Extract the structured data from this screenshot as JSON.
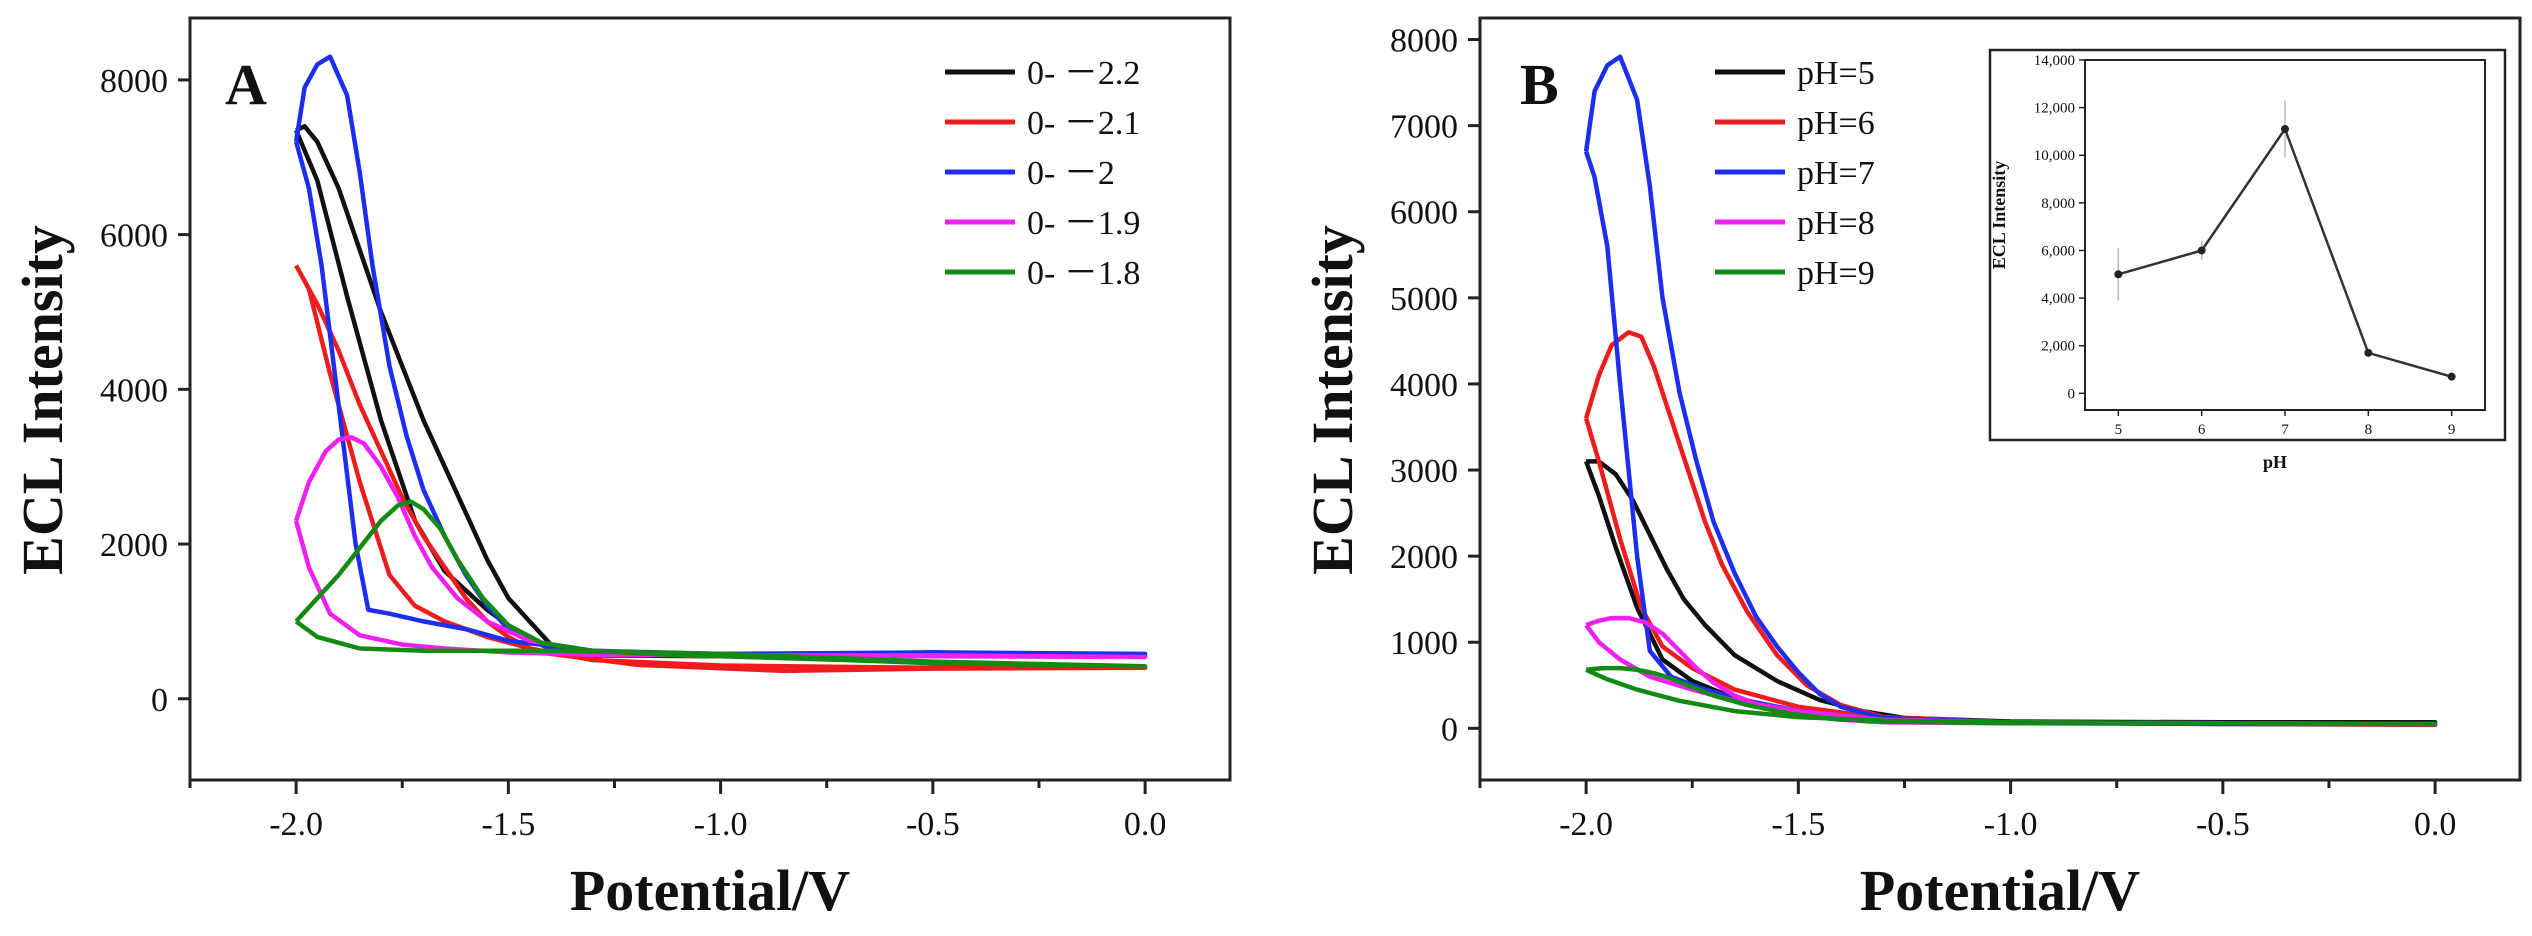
{
  "chart_data": [
    {
      "panel": "A",
      "type": "line",
      "xlabel": "Potential/V",
      "ylabel": "ECL Intensity",
      "xlim": [
        -2.25,
        0.2
      ],
      "ylim": [
        -1050,
        8800
      ],
      "xticks": [
        -2.0,
        -1.5,
        -1.0,
        -0.5,
        0.0
      ],
      "xtick_labels": [
        "-2.0",
        "-1.5",
        "-1.0",
        "-0.5",
        "0.0"
      ],
      "yticks": [
        0,
        2000,
        4000,
        6000,
        8000
      ],
      "ytick_labels": [
        "0",
        "2000",
        "4000",
        "6000",
        "8000"
      ],
      "legend_position": "top-right",
      "series": [
        {
          "name": "0- －2.2",
          "color": "#111111",
          "x": [
            -2.0,
            -1.98,
            -1.95,
            -1.9,
            -1.85,
            -1.8,
            -1.75,
            -1.7,
            -1.65,
            -1.6,
            -1.55,
            -1.5,
            -1.4,
            -1.3,
            -1.0,
            -0.5,
            0.0,
            -0.5,
            -1.0,
            -1.3,
            -1.45,
            -1.55,
            -1.65,
            -1.72,
            -1.8,
            -1.88,
            -1.95,
            -2.0
          ],
          "y": [
            7350,
            7400,
            7200,
            6600,
            5800,
            5000,
            4300,
            3600,
            3000,
            2400,
            1800,
            1300,
            700,
            560,
            550,
            560,
            550,
            560,
            550,
            580,
            750,
            1150,
            1650,
            2300,
            3600,
            5200,
            6700,
            7350
          ]
        },
        {
          "name": "0- －2.1",
          "color": "#ee1c1c",
          "x": [
            -2.0,
            -1.95,
            -1.9,
            -1.85,
            -1.8,
            -1.75,
            -1.7,
            -1.65,
            -1.6,
            -1.55,
            -1.5,
            -1.45,
            -1.3,
            -1.0,
            -0.5,
            0.0,
            -0.5,
            -0.85,
            -1.2,
            -1.4,
            -1.55,
            -1.65,
            -1.72,
            -1.78,
            -1.85,
            -1.92,
            -1.97,
            -2.0
          ],
          "y": [
            5600,
            5100,
            4500,
            3800,
            3200,
            2600,
            2100,
            1700,
            1300,
            1000,
            800,
            650,
            500,
            430,
            400,
            400,
            390,
            360,
            440,
            580,
            800,
            1000,
            1200,
            1600,
            2800,
            4200,
            5300,
            5600
          ]
        },
        {
          "name": "0- －2",
          "color": "#1c2ff0",
          "x": [
            -2.0,
            -1.98,
            -1.95,
            -1.92,
            -1.88,
            -1.85,
            -1.82,
            -1.78,
            -1.74,
            -1.7,
            -1.65,
            -1.6,
            -1.55,
            -1.5,
            -1.45,
            -1.4,
            -1.3,
            -1.0,
            -0.5,
            0.0,
            -0.5,
            -1.0,
            -1.3,
            -1.5,
            -1.6,
            -1.7,
            -1.78,
            -1.83,
            -1.86,
            -1.9,
            -1.94,
            -1.97,
            -2.0
          ],
          "y": [
            7200,
            7900,
            8200,
            8300,
            7800,
            6800,
            5600,
            4300,
            3400,
            2700,
            2100,
            1600,
            1200,
            900,
            750,
            650,
            600,
            580,
            600,
            580,
            600,
            580,
            620,
            750,
            900,
            1000,
            1100,
            1150,
            2000,
            3800,
            5600,
            6600,
            7200
          ]
        },
        {
          "name": "0- －1.9",
          "color": "#f020f0",
          "x": [
            -2.0,
            -1.97,
            -1.93,
            -1.9,
            -1.87,
            -1.84,
            -1.8,
            -1.76,
            -1.72,
            -1.68,
            -1.62,
            -1.55,
            -1.45,
            -1.3,
            -1.0,
            -0.5,
            0.0,
            -0.5,
            -1.0,
            -1.3,
            -1.5,
            -1.65,
            -1.75,
            -1.85,
            -1.92,
            -1.97,
            -2.0
          ],
          "y": [
            2300,
            2800,
            3200,
            3350,
            3380,
            3300,
            3000,
            2600,
            2100,
            1700,
            1300,
            1000,
            750,
            620,
            560,
            560,
            540,
            550,
            560,
            570,
            600,
            650,
            700,
            820,
            1100,
            1700,
            2300
          ]
        },
        {
          "name": "0- －1.8",
          "color": "#138a13",
          "x": [
            -2.0,
            -1.95,
            -1.9,
            -1.85,
            -1.8,
            -1.76,
            -1.73,
            -1.7,
            -1.66,
            -1.62,
            -1.56,
            -1.5,
            -1.42,
            -1.3,
            -1.1,
            -1.0,
            -0.7,
            -0.5,
            0.0,
            -0.5,
            -1.0,
            -1.4,
            -1.7,
            -1.85,
            -1.95,
            -2.0
          ],
          "y": [
            1000,
            1300,
            1600,
            1950,
            2300,
            2500,
            2550,
            2450,
            2200,
            1800,
            1300,
            950,
            720,
            620,
            560,
            550,
            500,
            460,
            420,
            480,
            580,
            620,
            620,
            650,
            800,
            1000
          ]
        }
      ]
    },
    {
      "panel": "B",
      "type": "line",
      "xlabel": "Potential/V",
      "ylabel": "ECL Intensity",
      "xlim": [
        -2.25,
        0.2
      ],
      "ylim": [
        -600,
        8250
      ],
      "xticks": [
        -2.0,
        -1.5,
        -1.0,
        -0.5,
        0.0
      ],
      "xtick_labels": [
        "-2.0",
        "-1.5",
        "-1.0",
        "-0.5",
        "0.0"
      ],
      "yticks": [
        0,
        1000,
        2000,
        3000,
        4000,
        5000,
        6000,
        7000,
        8000
      ],
      "ytick_labels": [
        "0",
        "1000",
        "2000",
        "3000",
        "4000",
        "5000",
        "6000",
        "7000",
        "8000"
      ],
      "legend_position": "top-left",
      "series": [
        {
          "name": "pH=5",
          "color": "#111111",
          "x": [
            -2.0,
            -1.97,
            -1.93,
            -1.89,
            -1.85,
            -1.81,
            -1.77,
            -1.72,
            -1.65,
            -1.55,
            -1.45,
            -1.35,
            -1.25,
            -1.0,
            -0.5,
            0.0,
            -0.5,
            -1.0,
            -1.3,
            -1.5,
            -1.65,
            -1.75,
            -1.82,
            -1.88,
            -1.93,
            -1.97,
            -2.0
          ],
          "y": [
            3100,
            3100,
            2950,
            2650,
            2250,
            1850,
            1500,
            1200,
            850,
            550,
            330,
            200,
            120,
            80,
            70,
            70,
            60,
            70,
            100,
            200,
            350,
            550,
            800,
            1400,
            2100,
            2700,
            3100
          ]
        },
        {
          "name": "pH=6",
          "color": "#ee1c1c",
          "x": [
            -2.0,
            -1.97,
            -1.94,
            -1.9,
            -1.87,
            -1.84,
            -1.8,
            -1.76,
            -1.72,
            -1.68,
            -1.62,
            -1.55,
            -1.48,
            -1.4,
            -1.3,
            -1.0,
            -0.5,
            0.0,
            -0.5,
            -1.0,
            -1.3,
            -1.5,
            -1.65,
            -1.75,
            -1.82,
            -1.87,
            -1.92,
            -1.97,
            -2.0
          ],
          "y": [
            3600,
            4100,
            4450,
            4600,
            4550,
            4200,
            3600,
            3000,
            2400,
            1900,
            1350,
            850,
            500,
            270,
            130,
            70,
            50,
            40,
            50,
            70,
            120,
            250,
            450,
            700,
            950,
            1400,
            2200,
            3100,
            3600
          ]
        },
        {
          "name": "pH=7",
          "color": "#1c2ff0",
          "x": [
            -2.0,
            -1.98,
            -1.95,
            -1.92,
            -1.88,
            -1.85,
            -1.82,
            -1.78,
            -1.74,
            -1.7,
            -1.65,
            -1.6,
            -1.55,
            -1.5,
            -1.45,
            -1.4,
            -1.3,
            -1.0,
            -0.5,
            0.0,
            -0.5,
            -1.0,
            -1.3,
            -1.5,
            -1.62,
            -1.72,
            -1.8,
            -1.85,
            -1.88,
            -1.92,
            -1.95,
            -1.98,
            -2.0
          ],
          "y": [
            6700,
            7400,
            7700,
            7800,
            7300,
            6300,
            5000,
            3900,
            3100,
            2400,
            1800,
            1300,
            950,
            650,
            400,
            250,
            120,
            70,
            50,
            50,
            50,
            60,
            100,
            200,
            320,
            450,
            600,
            900,
            2000,
            4000,
            5600,
            6400,
            6700
          ]
        },
        {
          "name": "pH=8",
          "color": "#f020f0",
          "x": [
            -2.0,
            -1.97,
            -1.94,
            -1.9,
            -1.86,
            -1.82,
            -1.78,
            -1.74,
            -1.7,
            -1.65,
            -1.58,
            -1.5,
            -1.4,
            -1.3,
            -1.0,
            -0.5,
            0.0,
            -0.5,
            -1.0,
            -1.3,
            -1.5,
            -1.65,
            -1.75,
            -1.85,
            -1.92,
            -1.97,
            -2.0
          ],
          "y": [
            1200,
            1250,
            1280,
            1280,
            1230,
            1100,
            900,
            700,
            530,
            380,
            250,
            150,
            100,
            70,
            60,
            60,
            50,
            60,
            70,
            100,
            200,
            320,
            450,
            600,
            800,
            1000,
            1200
          ]
        },
        {
          "name": "pH=9",
          "color": "#138a13",
          "x": [
            -2.0,
            -1.96,
            -1.92,
            -1.88,
            -1.84,
            -1.8,
            -1.76,
            -1.7,
            -1.62,
            -1.52,
            -1.42,
            -1.3,
            -1.0,
            -0.5,
            0.0,
            -0.5,
            -1.0,
            -1.3,
            -1.5,
            -1.65,
            -1.78,
            -1.88,
            -1.95,
            -2.0
          ],
          "y": [
            680,
            700,
            700,
            680,
            640,
            580,
            500,
            380,
            270,
            170,
            110,
            80,
            60,
            60,
            50,
            60,
            70,
            90,
            130,
            200,
            320,
            450,
            570,
            680
          ]
        }
      ]
    },
    {
      "panel": "B-inset",
      "type": "line",
      "xlabel": "pH",
      "ylabel": "ECL Intensity",
      "categories": [
        "5",
        "6",
        "7",
        "8",
        "9"
      ],
      "x": [
        5,
        6,
        7,
        8,
        9
      ],
      "values": [
        5000,
        6000,
        11100,
        1700,
        700
      ],
      "error": [
        1100,
        400,
        1200,
        100,
        80
      ],
      "xlim": [
        4.6,
        9.4
      ],
      "ylim": [
        -700,
        14000
      ],
      "yticks": [
        0,
        2000,
        4000,
        6000,
        8000,
        10000,
        12000,
        14000
      ],
      "ytick_labels": [
        "0",
        "2,000",
        "4,000",
        "6,000",
        "8,000",
        "10,000",
        "12,000",
        "14,000"
      ],
      "color": "#333333"
    }
  ]
}
